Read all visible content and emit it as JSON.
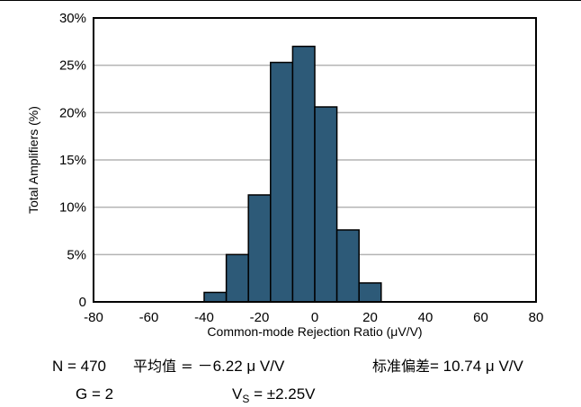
{
  "chart_data": {
    "type": "bar",
    "title": "",
    "xlabel": "Common-mode Rejection Ratio (μV/V)",
    "ylabel": "Total Amplifiers (%)",
    "xlim": [
      -80,
      80
    ],
    "ylim": [
      0,
      30
    ],
    "x_ticks": [
      -80,
      -60,
      -40,
      -20,
      0,
      20,
      40,
      60,
      80
    ],
    "x_tick_labels": [
      "-80",
      "-60",
      "-40",
      "-20",
      "0",
      "20",
      "40",
      "60",
      "80"
    ],
    "y_ticks": [
      0,
      5,
      10,
      15,
      20,
      25,
      30
    ],
    "y_tick_labels": [
      "0",
      "5%",
      "10%",
      "15%",
      "20%",
      "25%",
      "30%"
    ],
    "bin_edges": [
      -40,
      -32,
      -24,
      -16,
      -8,
      0,
      8,
      16,
      24
    ],
    "values": [
      1,
      5,
      11.3,
      25.3,
      27,
      20.6,
      7.6,
      2
    ],
    "grid": true,
    "bar_color": "#2d5a78",
    "bar_edge_color": "#000000",
    "grid_color": "#b3b3b3"
  },
  "annotations": {
    "n": "N = 470",
    "mean_label": "平均值 = ",
    "mean_value": "－6.22 μ V/V",
    "std_label": "标准偏差",
    "std_value": "= 10.74 μ V/V",
    "gain": "G = 2",
    "vs_prefix": "V",
    "vs_sub": "S",
    "vs_value": " = ±2.25V"
  }
}
